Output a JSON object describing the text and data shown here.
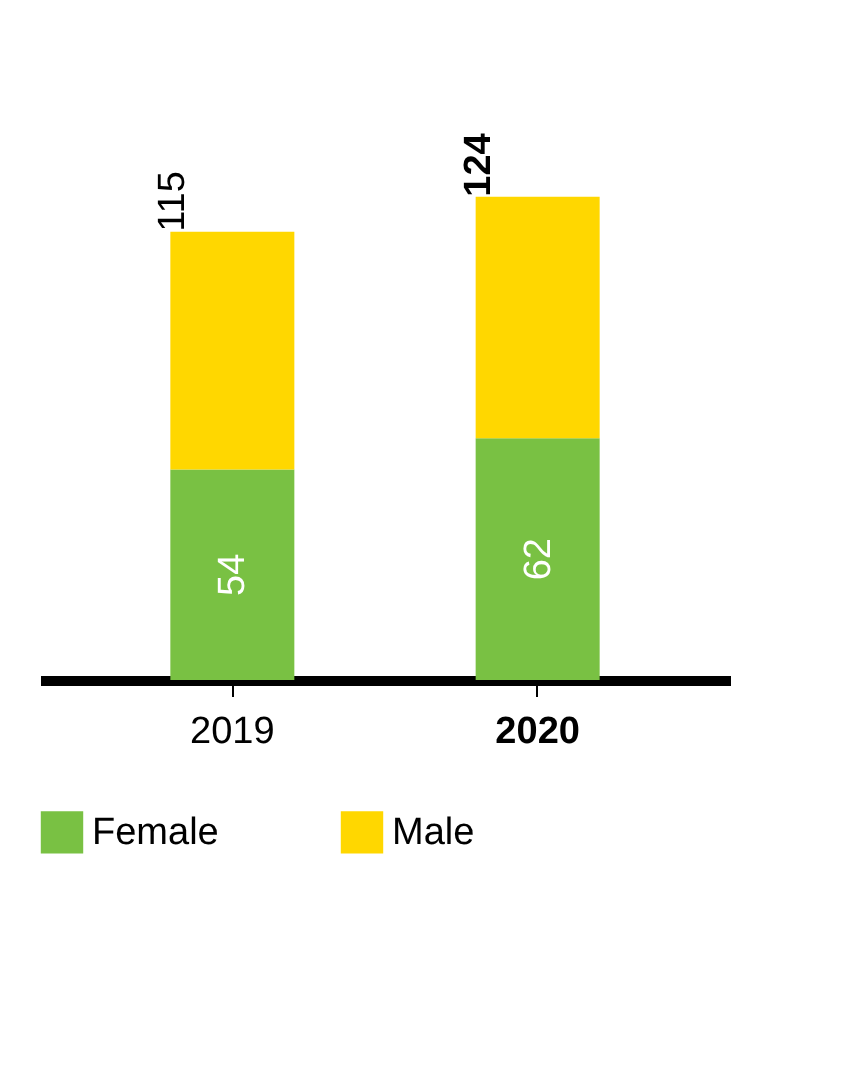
{
  "chart_data": {
    "type": "bar",
    "stacked": true,
    "categories": [
      "2019",
      "2020"
    ],
    "series": [
      {
        "name": "Female",
        "color": "#79c143",
        "values": [
          54,
          62
        ],
        "value_labels": [
          "54",
          "62"
        ]
      },
      {
        "name": "Male",
        "color": "#ffd700",
        "values": [
          61,
          62
        ],
        "value_labels": [
          null,
          null
        ]
      }
    ],
    "totals": [
      "115",
      "124"
    ],
    "tick_labels": "x",
    "legend": "bottom"
  }
}
